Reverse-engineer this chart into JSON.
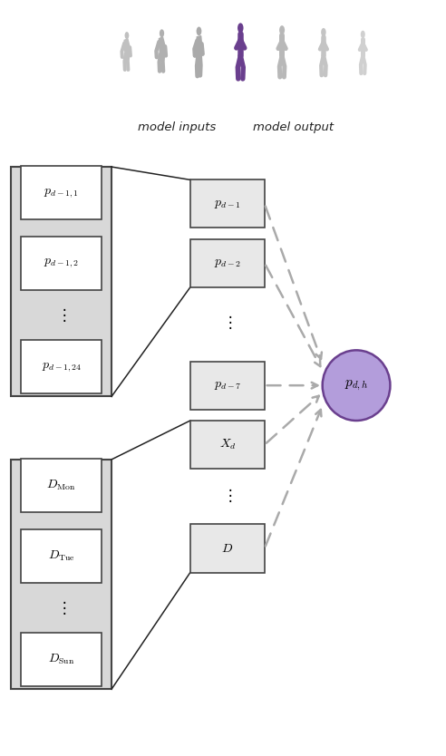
{
  "fig_width": 4.92,
  "fig_height": 8.34,
  "bg_color": "#ffffff",
  "box_facecolor_light": "#e8e8e8",
  "box_facecolor_white": "#ffffff",
  "box_edgecolor": "#444444",
  "group_edgecolor": "#444444",
  "group_facecolor": "#d8d8d8",
  "purple_color": "#6A3F8E",
  "purple_fill": "#9B72BE",
  "purple_fill_light": "#b39ddb",
  "arrow_color": "#aaaaaa",
  "line_color": "#222222",
  "text_color": "#222222"
}
